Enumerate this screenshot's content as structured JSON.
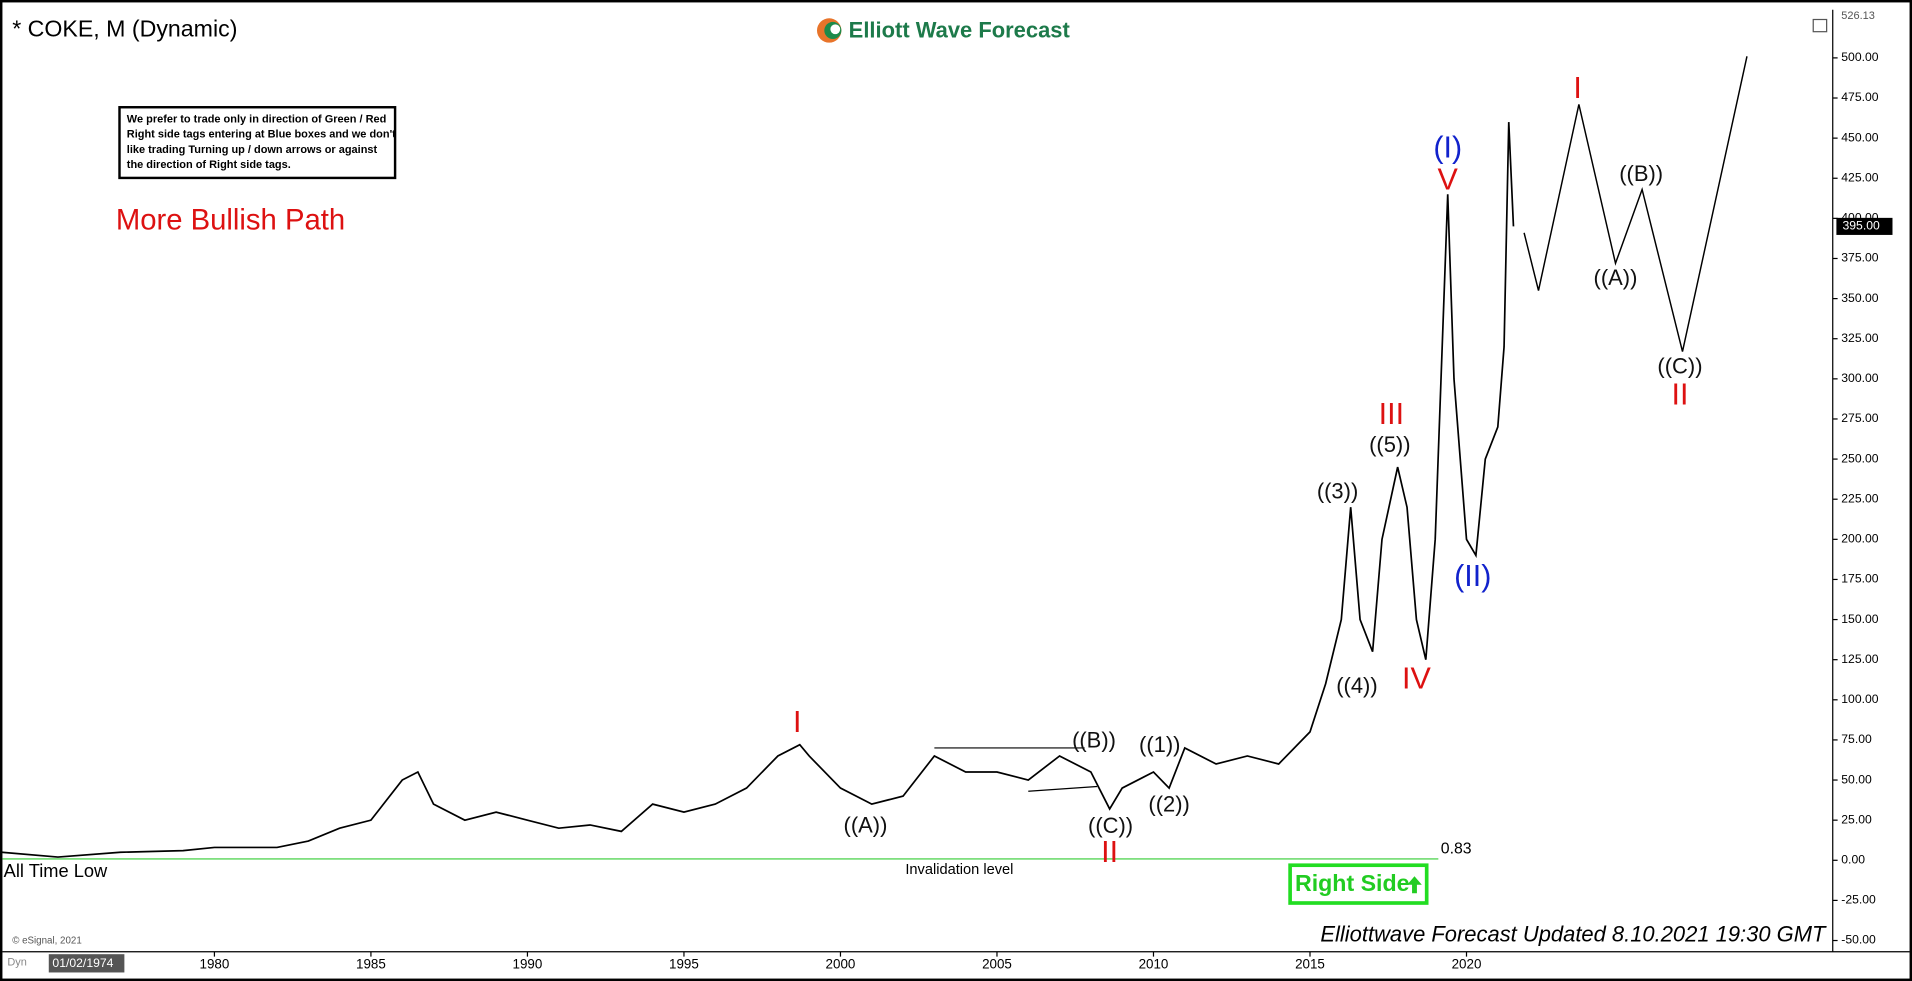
{
  "chart_data": {
    "type": "line",
    "title": "* COKE, M (Dynamic)",
    "brand": "Elliott Wave Forecast",
    "note": [
      "We prefer to trade only in direction of Green / Red",
      "Right side tags entering at Blue boxes and we don't",
      "like trading Turning up / down arrows or against",
      "the direction of Right side tags."
    ],
    "subtitle": "More Bullish Path",
    "footer": "Elliottwave Forecast Updated 8.10.2021 19:30 GMT",
    "copyright": "© eSignal, 2021",
    "start_date": "01/02/1974",
    "dyn": "Dyn",
    "right_side": "Right Side",
    "xlim": [
      1973.15,
      2031.7
    ],
    "ylim": [
      -57,
      530
    ],
    "xticks": [
      1980,
      1985,
      1990,
      1995,
      2000,
      2005,
      2010,
      2015,
      2020
    ],
    "yticks": [
      {
        "value": -50,
        "label": "-50.00"
      },
      {
        "value": -25,
        "label": "-25.00"
      },
      {
        "value": 0,
        "label": "0.00"
      },
      {
        "value": 25,
        "label": "25.00"
      },
      {
        "value": 50,
        "label": "50.00"
      },
      {
        "value": 75,
        "label": "75.00"
      },
      {
        "value": 100,
        "label": "100.00"
      },
      {
        "value": 125,
        "label": "125.00"
      },
      {
        "value": 150,
        "label": "150.00"
      },
      {
        "value": 175,
        "label": "175.00"
      },
      {
        "value": 200,
        "label": "200.00"
      },
      {
        "value": 225,
        "label": "225.00"
      },
      {
        "value": 250,
        "label": "250.00"
      },
      {
        "value": 275,
        "label": "275.00"
      },
      {
        "value": 300,
        "label": "300.00"
      },
      {
        "value": 325,
        "label": "325.00"
      },
      {
        "value": 350,
        "label": "350.00"
      },
      {
        "value": 375,
        "label": "375.00"
      },
      {
        "value": 400,
        "label": "400.00"
      },
      {
        "value": 425,
        "label": "425.00"
      },
      {
        "value": 450,
        "label": "450.00"
      },
      {
        "value": 475,
        "label": "475.00"
      },
      {
        "value": 500,
        "label": "500.00"
      }
    ],
    "max_label": {
      "value": 526.13,
      "label": "526.13"
    },
    "last_price": {
      "value": 395,
      "label": "395.00"
    },
    "series": [
      {
        "color": "#000000",
        "x": [
          1973.2,
          1975,
          1977,
          1979,
          1980,
          1982,
          1983,
          1984,
          1985,
          1986,
          1986.5,
          1987,
          1988,
          1989,
          1990,
          1991,
          1992,
          1993,
          1994,
          1995,
          1996,
          1997,
          1998,
          1998.7,
          1999,
          2000,
          2001,
          2002,
          2003,
          2004,
          2005,
          2006,
          2007,
          2008,
          2008.6,
          2009,
          2010,
          2010.5,
          2011,
          2012,
          2013,
          2014,
          2015,
          2015.5,
          2016,
          2016.3,
          2016.6,
          2017,
          2017.3,
          2017.8,
          2018.1,
          2018.4,
          2018.7,
          2019,
          2019.4,
          2019.6,
          2020,
          2020.3,
          2020.6,
          2021,
          2021.2,
          2021.35,
          2021.5
        ],
        "values": [
          5,
          2,
          5,
          6,
          8,
          8,
          12,
          20,
          25,
          50,
          55,
          35,
          25,
          30,
          25,
          20,
          22,
          18,
          35,
          30,
          35,
          45,
          65,
          72,
          65,
          45,
          35,
          40,
          65,
          55,
          55,
          50,
          65,
          55,
          32,
          45,
          55,
          45,
          70,
          60,
          65,
          60,
          80,
          110,
          150,
          220,
          150,
          130,
          200,
          245,
          220,
          150,
          125,
          200,
          415,
          300,
          200,
          190,
          250,
          270,
          320,
          460,
          395
        ]
      },
      {
        "color": "#000000",
        "x": [
          2021.84,
          2022.3,
          2023.59,
          2024.76,
          2025.61,
          2026.9,
          2028.96
        ],
        "values": [
          391,
          355,
          471,
          372,
          418,
          317,
          501
        ]
      }
    ],
    "trendlines": [
      {
        "x": [
          2003,
          2007.8
        ],
        "values": [
          70,
          70
        ]
      },
      {
        "x": [
          2006,
          2008.2
        ],
        "values": [
          43,
          46
        ]
      }
    ],
    "invalidation": {
      "value": 0.83,
      "label": "0.83",
      "x_end": 2019.1,
      "text": "Invalidation level",
      "low_text": "All Time Low",
      "color": "#33cc33"
    },
    "annotations": [
      {
        "text": "I",
        "x": 1998.62,
        "y": 85,
        "color": "#dd1111"
      },
      {
        "text": "((A))",
        "x": 2000.8,
        "y": 21,
        "color": "#111111"
      },
      {
        "text": "((B))",
        "x": 2008.1,
        "y": 74,
        "color": "#111111"
      },
      {
        "text": "((C))",
        "x": 2008.63,
        "y": 20.5,
        "color": "#111111"
      },
      {
        "text": "II",
        "x": 2008.6,
        "y": 4,
        "color": "#dd1111"
      },
      {
        "text": "((1))",
        "x": 2010.2,
        "y": 71,
        "color": "#111111"
      },
      {
        "text": "((2))",
        "x": 2010.5,
        "y": 34,
        "color": "#111111"
      },
      {
        "text": "((3))",
        "x": 2015.88,
        "y": 229,
        "color": "#111111"
      },
      {
        "text": "((4))",
        "x": 2016.5,
        "y": 108,
        "color": "#111111"
      },
      {
        "text": "((5))",
        "x": 2017.55,
        "y": 258,
        "color": "#111111"
      },
      {
        "text": "III",
        "x": 2017.6,
        "y": 277,
        "color": "#dd1111"
      },
      {
        "text": "IV",
        "x": 2018.4,
        "y": 112,
        "color": "#dd1111"
      },
      {
        "text": "(I)",
        "x": 2019.4,
        "y": 443,
        "color": "#1122cc"
      },
      {
        "text": "V",
        "x": 2019.4,
        "y": 423,
        "color": "#dd1111"
      },
      {
        "text": "(II)",
        "x": 2020.2,
        "y": 176,
        "color": "#1122cc"
      },
      {
        "text": "I",
        "x": 2023.55,
        "y": 480,
        "color": "#dd1111"
      },
      {
        "text": "((B))",
        "x": 2025.58,
        "y": 427,
        "color": "#111111"
      },
      {
        "text": "((A))",
        "x": 2024.76,
        "y": 362,
        "color": "#111111"
      },
      {
        "text": "((C))",
        "x": 2026.82,
        "y": 307,
        "color": "#111111"
      },
      {
        "text": "II",
        "x": 2026.82,
        "y": 289,
        "color": "#dd1111"
      }
    ]
  }
}
